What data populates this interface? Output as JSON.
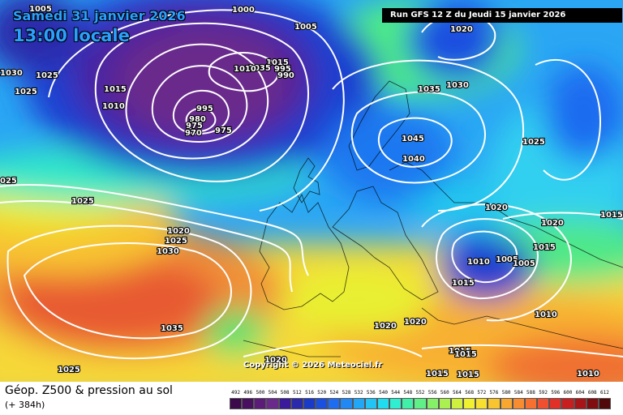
{
  "header": {
    "date": "Samedi 31 janvier 2026",
    "time": "13:00 locale",
    "run": "Run GFS 12 Z du Jeudi 15 janvier 2026"
  },
  "copyright": "Copyright © 2026 Meteociel.fr",
  "footer": {
    "title": "Géop. Z500 & pression au sol",
    "subtitle": "(+ 384h)"
  },
  "scale": {
    "ticks": [
      "492",
      "496",
      "500",
      "504",
      "508",
      "512",
      "516",
      "520",
      "524",
      "528",
      "532",
      "536",
      "540",
      "544",
      "548",
      "552",
      "556",
      "560",
      "564",
      "568",
      "572",
      "576",
      "580",
      "584",
      "588",
      "592",
      "596",
      "600",
      "604",
      "608",
      "612"
    ],
    "colors": [
      "#3c0a4a",
      "#4a1060",
      "#5c1b78",
      "#6a2a8c",
      "#3a1a9a",
      "#2a2aaa",
      "#1a3ac8",
      "#1a50e0",
      "#1e6cf0",
      "#2288f4",
      "#22a6f6",
      "#22c4f6",
      "#20dcee",
      "#30eed0",
      "#40f0a8",
      "#60f088",
      "#86f068",
      "#aaf050",
      "#d0f040",
      "#eef030",
      "#f8e030",
      "#f8c430",
      "#f8a830",
      "#f88c30",
      "#f87030",
      "#f05030",
      "#e03028",
      "#c81e20",
      "#a81418",
      "#800c10",
      "#500808"
    ]
  },
  "map_labels": [
    {
      "text": "1005"
    },
    {
      "text": "1000"
    },
    {
      "text": "1005"
    },
    {
      "text": "1030"
    },
    {
      "text": "1025"
    },
    {
      "text": "1025"
    },
    {
      "text": "1015"
    },
    {
      "text": "1010"
    },
    {
      "text": "1015"
    },
    {
      "text": "1035"
    },
    {
      "text": "995"
    },
    {
      "text": "990"
    },
    {
      "text": "1010"
    },
    {
      "text": "995"
    },
    {
      "text": "980"
    },
    {
      "text": "975"
    },
    {
      "text": "970"
    },
    {
      "text": "975"
    },
    {
      "text": "1020"
    },
    {
      "text": "1035"
    },
    {
      "text": "1030"
    },
    {
      "text": "1045"
    },
    {
      "text": "1040"
    },
    {
      "text": "1025"
    },
    {
      "text": "025"
    },
    {
      "text": "1025"
    },
    {
      "text": "1020"
    },
    {
      "text": "1025"
    },
    {
      "text": "1030"
    },
    {
      "text": "1020"
    },
    {
      "text": "1020"
    },
    {
      "text": "1015"
    },
    {
      "text": "1015"
    },
    {
      "text": "1010"
    },
    {
      "text": "1005"
    },
    {
      "text": "1005"
    },
    {
      "text": "1015"
    },
    {
      "text": "1010"
    },
    {
      "text": "1035"
    },
    {
      "text": "1020"
    },
    {
      "text": "1020"
    },
    {
      "text": "1015"
    },
    {
      "text": "1020"
    },
    {
      "text": "1015"
    },
    {
      "text": "1015"
    },
    {
      "text": "1015"
    },
    {
      "text": "1010"
    },
    {
      "text": "1025"
    }
  ]
}
